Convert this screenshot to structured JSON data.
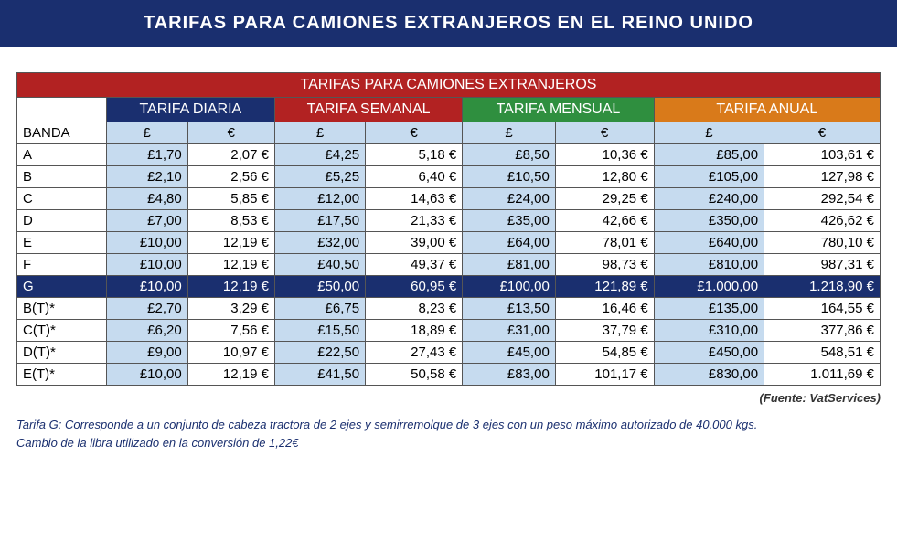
{
  "title": "TARIFAS PARA CAMIONES EXTRANJEROS EN EL REINO UNIDO",
  "table": {
    "heading": "TARIFAS PARA CAMIONES EXTRANJEROS",
    "sections": {
      "diaria": "TARIFA DIARIA",
      "semanal": "TARIFA SEMANAL",
      "mensual": "TARIFA MENSUAL",
      "anual": "TARIFA ANUAL"
    },
    "banda_label": "BANDA",
    "currency_gbp": "£",
    "currency_eur": "€",
    "rows": [
      {
        "band": "A",
        "d_g": "£1,70",
        "d_e": "2,07 €",
        "s_g": "£4,25",
        "s_e": "5,18 €",
        "m_g": "£8,50",
        "m_e": "10,36 €",
        "a_g": "£85,00",
        "a_e": "103,61 €"
      },
      {
        "band": "B",
        "d_g": "£2,10",
        "d_e": "2,56 €",
        "s_g": "£5,25",
        "s_e": "6,40 €",
        "m_g": "£10,50",
        "m_e": "12,80 €",
        "a_g": "£105,00",
        "a_e": "127,98 €"
      },
      {
        "band": "C",
        "d_g": "£4,80",
        "d_e": "5,85 €",
        "s_g": "£12,00",
        "s_e": "14,63 €",
        "m_g": "£24,00",
        "m_e": "29,25 €",
        "a_g": "£240,00",
        "a_e": "292,54 €"
      },
      {
        "band": "D",
        "d_g": "£7,00",
        "d_e": "8,53 €",
        "s_g": "£17,50",
        "s_e": "21,33 €",
        "m_g": "£35,00",
        "m_e": "42,66 €",
        "a_g": "£350,00",
        "a_e": "426,62 €"
      },
      {
        "band": "E",
        "d_g": "£10,00",
        "d_e": "12,19 €",
        "s_g": "£32,00",
        "s_e": "39,00 €",
        "m_g": "£64,00",
        "m_e": "78,01 €",
        "a_g": "£640,00",
        "a_e": "780,10 €"
      },
      {
        "band": "F",
        "d_g": "£10,00",
        "d_e": "12,19 €",
        "s_g": "£40,50",
        "s_e": "49,37 €",
        "m_g": "£81,00",
        "m_e": "98,73 €",
        "a_g": "£810,00",
        "a_e": "987,31 €"
      },
      {
        "band": "G",
        "d_g": "£10,00",
        "d_e": "12,19 €",
        "s_g": "£50,00",
        "s_e": "60,95 €",
        "m_g": "£100,00",
        "m_e": "121,89 €",
        "a_g": "£1.000,00",
        "a_e": "1.218,90 €",
        "highlight": true
      },
      {
        "band": "B(T)*",
        "d_g": "£2,70",
        "d_e": "3,29 €",
        "s_g": "£6,75",
        "s_e": "8,23 €",
        "m_g": "£13,50",
        "m_e": "16,46 €",
        "a_g": "£135,00",
        "a_e": "164,55 €"
      },
      {
        "band": "C(T)*",
        "d_g": "£6,20",
        "d_e": "7,56 €",
        "s_g": "£15,50",
        "s_e": "18,89 €",
        "m_g": "£31,00",
        "m_e": "37,79 €",
        "a_g": "£310,00",
        "a_e": "377,86 €"
      },
      {
        "band": "D(T)*",
        "d_g": "£9,00",
        "d_e": "10,97 €",
        "s_g": "£22,50",
        "s_e": "27,43 €",
        "m_g": "£45,00",
        "m_e": "54,85 €",
        "a_g": "£450,00",
        "a_e": "548,51 €"
      },
      {
        "band": "E(T)*",
        "d_g": "£10,00",
        "d_e": "12,19 €",
        "s_g": "£41,50",
        "s_e": "50,58 €",
        "m_g": "£83,00",
        "m_e": "101,17 €",
        "a_g": "£830,00",
        "a_e": "1.011,69 €"
      }
    ]
  },
  "source": "(Fuente: VatServices)",
  "footnote1": "Tarifa G: Corresponde a un conjunto de cabeza tractora de 2 ejes y semirremolque de 3 ejes con un peso máximo autorizado de 40.000 kgs.",
  "footnote2": "Cambio de la libra utilizado en la conversión de 1,22€",
  "colors": {
    "header_bg": "#1a2f6f",
    "red": "#b22222",
    "green": "#2f8f3f",
    "orange": "#d97a1a",
    "cell_gbp": "#c6dbef",
    "cell_eur": "#ffffff",
    "border": "#555555",
    "footnote_text": "#1a2f6f"
  }
}
